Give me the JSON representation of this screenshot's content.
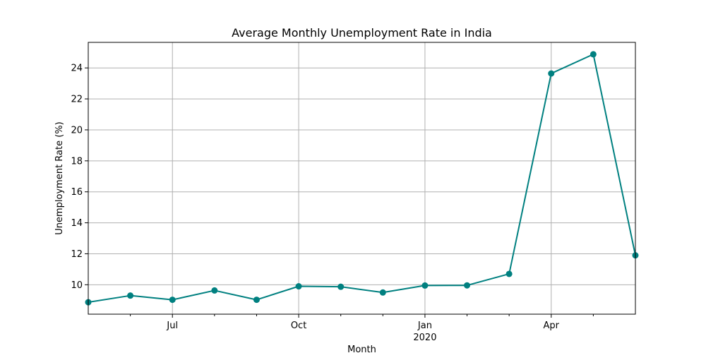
{
  "chart_data": {
    "type": "line",
    "title": "Average Monthly Unemployment Rate in India",
    "xlabel": "Month",
    "ylabel": "Unemployment Rate (%)",
    "x": [
      "2019-05",
      "2019-06",
      "2019-07",
      "2019-08",
      "2019-09",
      "2019-10",
      "2019-11",
      "2019-12",
      "2020-01",
      "2020-02",
      "2020-03",
      "2020-04",
      "2020-05",
      "2020-06"
    ],
    "series": [
      {
        "values": [
          8.87,
          9.3,
          9.03,
          9.63,
          9.03,
          9.9,
          9.87,
          9.5,
          9.95,
          9.96,
          10.7,
          23.64,
          24.88,
          11.9
        ]
      }
    ],
    "x_ticks": [
      {
        "x": "2019-07",
        "label": "Jul",
        "sublabel": ""
      },
      {
        "x": "2019-10",
        "label": "Oct",
        "sublabel": ""
      },
      {
        "x": "2020-01",
        "label": "Jan",
        "sublabel": "2020"
      },
      {
        "x": "2020-04",
        "label": "Apr",
        "sublabel": ""
      }
    ],
    "y_ticks": [
      "10",
      "12",
      "14",
      "16",
      "18",
      "20",
      "22",
      "24"
    ],
    "ylim": [
      8.1,
      25.65
    ],
    "xlim": [
      "2019-05",
      "2020-06"
    ],
    "grid": true,
    "marker": "circle",
    "line_color": "#008080",
    "grid_color": "#b0b0b0"
  }
}
